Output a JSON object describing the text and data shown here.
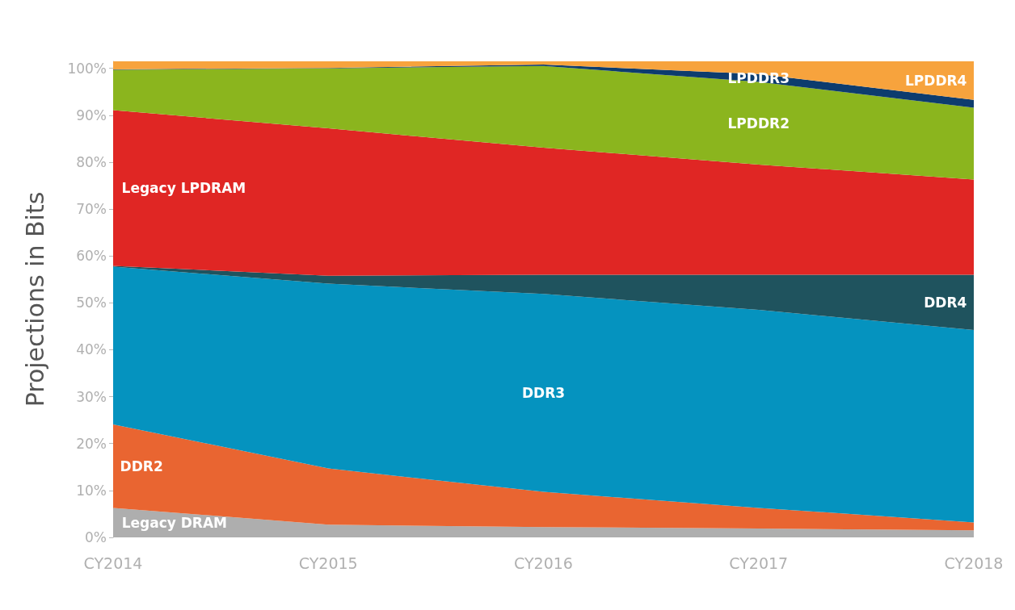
{
  "chart_data": {
    "type": "area",
    "stacked": true,
    "ylabel": "Projections in Bits",
    "categories": [
      "CY2014",
      "CY2015",
      "CY2016",
      "CY2017",
      "CY2018"
    ],
    "ylim": [
      0,
      101.5
    ],
    "yticks": [
      {
        "value": 0,
        "label": "0%"
      },
      {
        "value": 10,
        "label": "10%"
      },
      {
        "value": 20,
        "label": "20%"
      },
      {
        "value": 30,
        "label": "30%"
      },
      {
        "value": 40,
        "label": "40%"
      },
      {
        "value": 50,
        "label": "50%"
      },
      {
        "value": 60,
        "label": "60%"
      },
      {
        "value": 70,
        "label": "70%"
      },
      {
        "value": 80,
        "label": "80%"
      },
      {
        "value": 90,
        "label": "90%"
      },
      {
        "value": 100,
        "label": "100%"
      }
    ],
    "grid": false,
    "legend": false,
    "series": [
      {
        "name": "Legacy DRAM",
        "color": "#aeaeae",
        "values": [
          6.3,
          2.7,
          2.2,
          1.9,
          1.5
        ]
      },
      {
        "name": "DDR2",
        "color": "#e96531",
        "values": [
          17.8,
          12.0,
          7.5,
          4.4,
          1.7
        ]
      },
      {
        "name": "DDR3",
        "color": "#0593bf",
        "values": [
          33.6,
          39.4,
          42.2,
          42.2,
          41.0
        ]
      },
      {
        "name": "DDR4",
        "color": "#1f535e",
        "values": [
          0.2,
          1.7,
          4.1,
          7.5,
          11.8
        ]
      },
      {
        "name": "Legacy LPDRAM",
        "color": "#e02624",
        "values": [
          33.2,
          31.4,
          27.1,
          23.5,
          20.3
        ]
      },
      {
        "name": "LPDDR2",
        "color": "#8bb51e",
        "values": [
          8.6,
          12.8,
          17.4,
          17.6,
          15.3
        ]
      },
      {
        "name": "LPDDR3",
        "color": "#0d3c6e",
        "values": [
          0.1,
          0.1,
          0.3,
          1.7,
          1.7
        ]
      },
      {
        "name": "LPDDR4",
        "color": "#f7a33d",
        "values": [
          1.7,
          1.4,
          0.7,
          2.7,
          8.2
        ]
      }
    ]
  }
}
